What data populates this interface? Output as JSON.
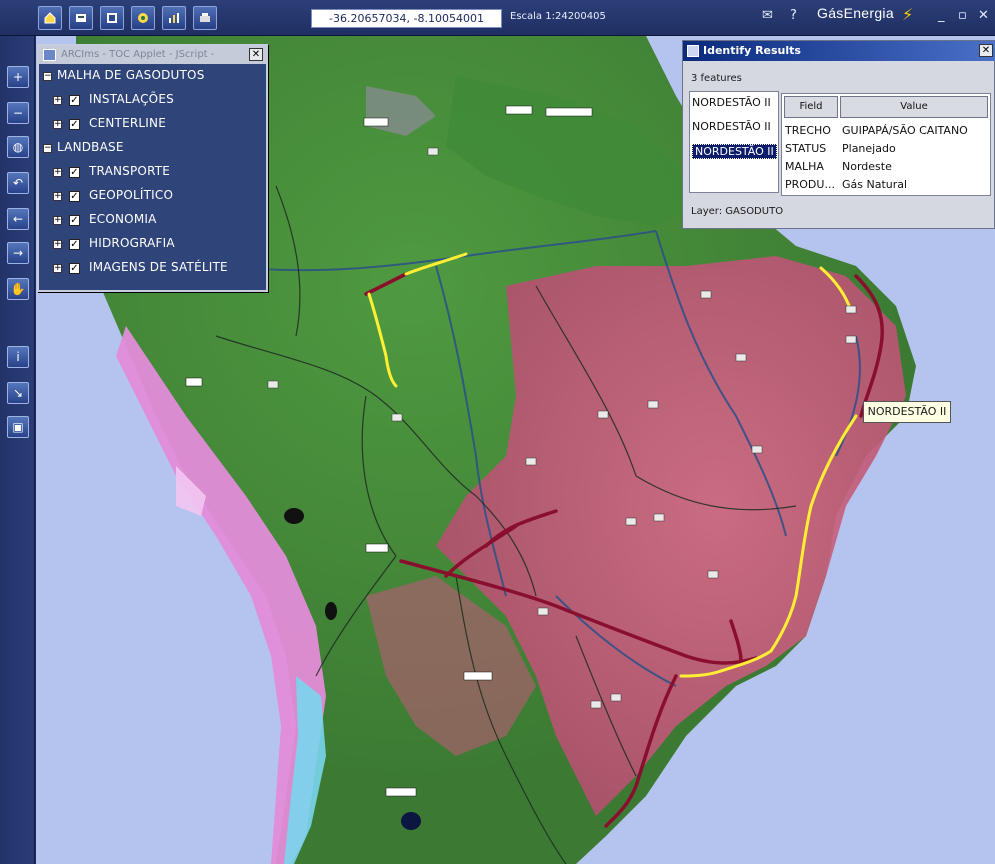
{
  "toolbar": {
    "coordinates": "-36.20657034, -8.10054001",
    "scale": "Escala 1:24200405",
    "brand": "GásEnergia",
    "tools": [
      "home-icon",
      "print-icon",
      "layers-icon",
      "settings-icon",
      "chart-icon",
      "printer-icon"
    ]
  },
  "left_tools": [
    "zoom-in-icon",
    "zoom-out-icon",
    "globe-icon",
    "zoom-back-icon",
    "pan-left-icon",
    "pan-right-icon",
    "hand-icon",
    "identify-icon",
    "measure-icon",
    "info-icon"
  ],
  "toc": {
    "title": "ARCIms - TOC Applet - JScript -",
    "groups": [
      {
        "label": "MALHA DE GASODUTOS",
        "items": [
          "INSTALAÇÕES",
          "CENTERLINE"
        ]
      },
      {
        "label": "LANDBASE",
        "items": [
          "TRANSPORTE",
          "GEOPOLÍTICO",
          "ECONOMIA",
          "HIDROGRAFIA",
          "IMAGENS DE SATÉLITE"
        ]
      }
    ]
  },
  "identify": {
    "title": "Identify Results",
    "count": "3 features",
    "features": [
      "NORDESTÃO II",
      "NORDESTÃO II",
      "NORDESTÃO II"
    ],
    "selected_index": 2,
    "columns": [
      "Field",
      "Value"
    ],
    "rows": [
      {
        "field": "TRECHO",
        "value": "GUIPAPÁ/SÃO CAITANO"
      },
      {
        "field": "STATUS",
        "value": "Planejado"
      },
      {
        "field": "MALHA",
        "value": "Nordeste"
      },
      {
        "field": "PRODU...",
        "value": "Gás Natural"
      }
    ],
    "layer": "Layer: GASODUTO"
  },
  "map": {
    "tooltip": "NORDESTÃO II",
    "colors": {
      "ocean": "#b4c4ee",
      "forest": "#4d8a3c",
      "savanna": "#c45a7a",
      "andes": "#e48ed8",
      "pipeline_existing": "#8a0f2f",
      "pipeline_planned": "#ffee33",
      "rivers": "#2b4f8a",
      "borders": "#1d2a22"
    }
  }
}
